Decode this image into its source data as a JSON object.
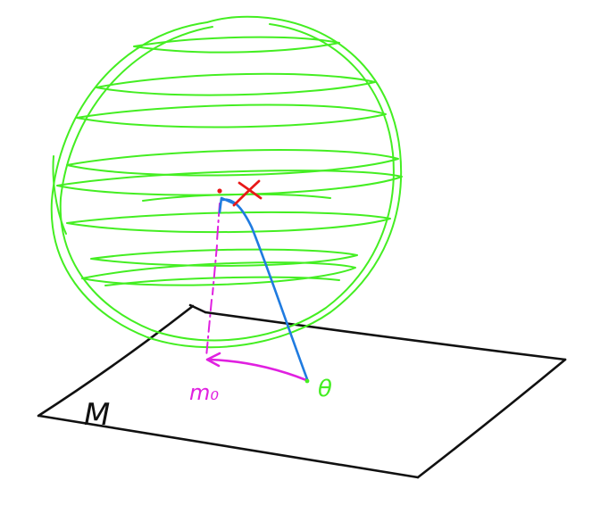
{
  "labels": {
    "manifold": "M",
    "theta": "θ",
    "x": "x",
    "m0": "m₀"
  },
  "colors": {
    "sphere": "#44ee22",
    "geodesic": "#1f7be0",
    "projection": "#e020e0",
    "x_point": "#e81818",
    "plane": "#111111",
    "background": "#ffffff"
  }
}
